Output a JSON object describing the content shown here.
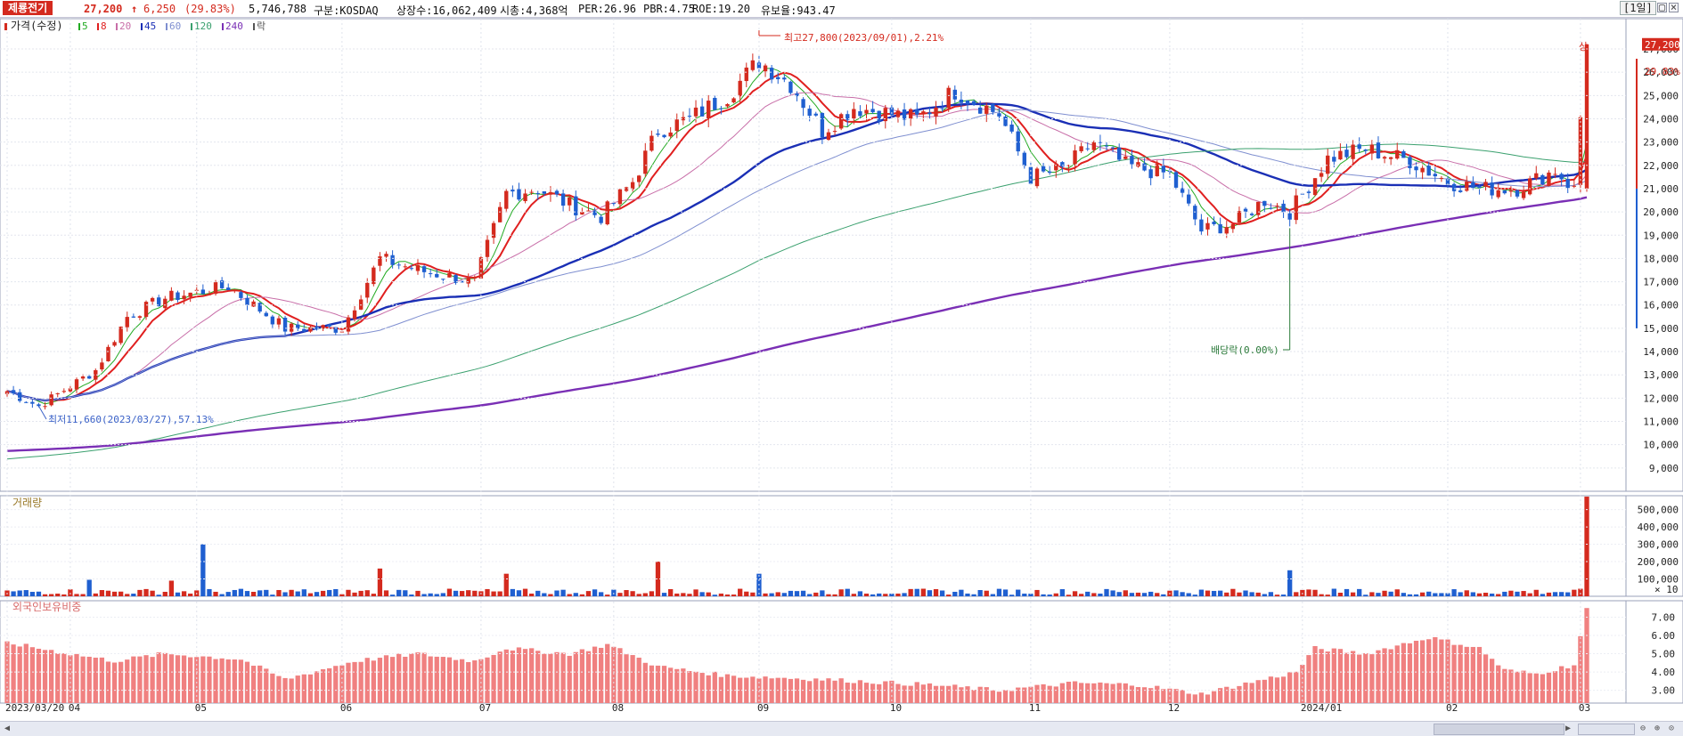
{
  "header": {
    "stock_name": "제룡전기",
    "price": "27,200",
    "change_arrow": "↑",
    "change": "6,250",
    "change_pct": "(29.83%)",
    "volume": "5,746,788",
    "market": "구분:KOSDAQ",
    "listed_shares": "상장수:16,062,409",
    "market_cap": "시총:4,368억",
    "per": "PER:26.96",
    "pbr": "PBR:4.75",
    "roe": "ROE:19.20",
    "reserve": "유보율:943.47",
    "period": "[1일]",
    "up_color": "#d42a1e",
    "down_color": "#1f5fd0"
  },
  "panels": {
    "price_title": "가격(수정)",
    "volume_title": "거래량",
    "foreign_title": "외국인보유비중"
  },
  "chart_data": [
    {
      "type": "candlestick",
      "title": "가격(수정)",
      "x_start": "2023/03/20",
      "x_end": "2024/03",
      "x_ticks": [
        "2023/03/20",
        "04",
        "05",
        "06",
        "07",
        "08",
        "09",
        "10",
        "11",
        "12",
        "2024/01",
        "02",
        "03"
      ],
      "y_ticks": [
        9000,
        10000,
        11000,
        12000,
        13000,
        14000,
        15000,
        16000,
        17000,
        18000,
        19000,
        20000,
        21000,
        22000,
        23000,
        24000,
        25000,
        26000,
        27000
      ],
      "ylim": [
        8000,
        28300
      ],
      "moving_averages": [
        {
          "name": "5",
          "color": "#22aa22"
        },
        {
          "name": "8",
          "color": "#e01f1f"
        },
        {
          "name": "20",
          "color": "#c86ea8"
        },
        {
          "name": "45",
          "color": "#1a2fb5"
        },
        {
          "name": "60",
          "color": "#7f8fd0"
        },
        {
          "name": "120",
          "color": "#3aa06e"
        },
        {
          "name": "240",
          "color": "#7a2fb5"
        },
        {
          "name": "락",
          "color": "#555555"
        }
      ],
      "anchors": [
        {
          "date": "2023/03/20",
          "close": 12300
        },
        {
          "date": "2023/03/27",
          "close": 11660
        },
        {
          "date": "2023/04/07",
          "close": 13200
        },
        {
          "date": "2023/04/14",
          "close": 15500
        },
        {
          "date": "2023/04/24",
          "close": 16300
        },
        {
          "date": "2023/05/08",
          "close": 16800
        },
        {
          "date": "2023/05/19",
          "close": 15000
        },
        {
          "date": "2023/06/01",
          "close": 15000
        },
        {
          "date": "2023/06/09",
          "close": 18000
        },
        {
          "date": "2023/06/19",
          "close": 17500
        },
        {
          "date": "2023/06/30",
          "close": 17000
        },
        {
          "date": "2023/07/07",
          "close": 20800
        },
        {
          "date": "2023/07/14",
          "close": 21000
        },
        {
          "date": "2023/07/21",
          "close": 20300
        },
        {
          "date": "2023/07/28",
          "close": 19800
        },
        {
          "date": "2023/08/04",
          "close": 21300
        },
        {
          "date": "2023/08/10",
          "close": 23500
        },
        {
          "date": "2023/08/17",
          "close": 24000
        },
        {
          "date": "2023/08/25",
          "close": 25000
        },
        {
          "date": "2023/09/01",
          "close": 26500
        },
        {
          "date": "2023/09/08",
          "close": 25500
        },
        {
          "date": "2023/09/15",
          "close": 23500
        },
        {
          "date": "2023/09/22",
          "close": 24500
        },
        {
          "date": "2023/10/06",
          "close": 24000
        },
        {
          "date": "2023/10/16",
          "close": 25200
        },
        {
          "date": "2023/10/25",
          "close": 24200
        },
        {
          "date": "2023/11/01",
          "close": 21500
        },
        {
          "date": "2023/11/08",
          "close": 21800
        },
        {
          "date": "2023/11/15",
          "close": 23000
        },
        {
          "date": "2023/11/22",
          "close": 22000
        },
        {
          "date": "2023/12/01",
          "close": 21600
        },
        {
          "date": "2023/12/08",
          "close": 19200
        },
        {
          "date": "2023/12/15",
          "close": 19500
        },
        {
          "date": "2023/12/22",
          "close": 20500
        },
        {
          "date": "2023/12/28",
          "close": 20000
        },
        {
          "date": "2024/01/05",
          "close": 22300
        },
        {
          "date": "2024/01/15",
          "close": 22700
        },
        {
          "date": "2024/01/24",
          "close": 22200
        },
        {
          "date": "2024/02/01",
          "close": 21300
        },
        {
          "date": "2024/02/08",
          "close": 21000
        },
        {
          "date": "2024/02/16",
          "close": 21000
        },
        {
          "date": "2024/02/26",
          "close": 21800
        },
        {
          "date": "2024/02/29",
          "close": 20950
        },
        {
          "date": "2024/03/04",
          "close": 27200
        }
      ],
      "annotations": {
        "high": "최고27,800(2023/09/01),2.21%",
        "low": "최저11,660(2023/03/27),57.13%",
        "dividend": "배당락(0.00%)",
        "limit_up": "상",
        "current_price": "27,200",
        "current_pct": "29.83%"
      }
    },
    {
      "type": "bar",
      "title": "거래량",
      "y_ticks": [
        100000,
        200000,
        300000,
        400000,
        500000
      ],
      "y_unit": "× 10",
      "ylim": [
        0,
        580000
      ],
      "typical": 22000,
      "spikes": [
        {
          "date": "2023/04/06",
          "value": 95000
        },
        {
          "date": "2023/04/25",
          "value": 90000
        },
        {
          "date": "2023/05/02",
          "value": 300000
        },
        {
          "date": "2023/06/09",
          "value": 160000
        },
        {
          "date": "2023/07/07",
          "value": 130000
        },
        {
          "date": "2023/08/10",
          "value": 200000
        },
        {
          "date": "2023/09/01",
          "value": 130000
        },
        {
          "date": "2023/12/28",
          "value": 150000
        },
        {
          "date": "2024/03/04",
          "value": 574679
        }
      ]
    },
    {
      "type": "bar",
      "title": "외국인보유비중",
      "y_ticks": [
        3.0,
        4.0,
        5.0,
        6.0,
        7.0
      ],
      "ylim": [
        2.3,
        7.9
      ],
      "anchors": [
        {
          "date": "2023/03/20",
          "value": 5.6
        },
        {
          "date": "2023/04/03",
          "value": 5.0
        },
        {
          "date": "2023/04/12",
          "value": 4.6
        },
        {
          "date": "2023/04/24",
          "value": 5.0
        },
        {
          "date": "2023/05/10",
          "value": 4.7
        },
        {
          "date": "2023/05/19",
          "value": 3.6
        },
        {
          "date": "2023/06/05",
          "value": 4.6
        },
        {
          "date": "2023/06/19",
          "value": 5.0
        },
        {
          "date": "2023/06/30",
          "value": 4.6
        },
        {
          "date": "2023/07/07",
          "value": 5.3
        },
        {
          "date": "2023/07/21",
          "value": 5.0
        },
        {
          "date": "2023/07/31",
          "value": 5.5
        },
        {
          "date": "2023/08/10",
          "value": 4.3
        },
        {
          "date": "2023/08/25",
          "value": 3.8
        },
        {
          "date": "2023/09/15",
          "value": 3.6
        },
        {
          "date": "2023/10/10",
          "value": 3.3
        },
        {
          "date": "2023/10/25",
          "value": 3.0
        },
        {
          "date": "2023/11/10",
          "value": 3.4
        },
        {
          "date": "2023/11/24",
          "value": 3.3
        },
        {
          "date": "2023/12/08",
          "value": 2.8
        },
        {
          "date": "2023/12/22",
          "value": 3.6
        },
        {
          "date": "2023/12/29",
          "value": 4.0
        },
        {
          "date": "2024/01/03",
          "value": 5.3
        },
        {
          "date": "2024/01/15",
          "value": 5.0
        },
        {
          "date": "2024/01/29",
          "value": 5.9
        },
        {
          "date": "2024/02/08",
          "value": 5.3
        },
        {
          "date": "2024/02/14",
          "value": 4.1
        },
        {
          "date": "2024/02/21",
          "value": 3.9
        },
        {
          "date": "2024/02/29",
          "value": 4.4
        },
        {
          "date": "2024/03/04",
          "value": 7.5
        }
      ]
    }
  ]
}
